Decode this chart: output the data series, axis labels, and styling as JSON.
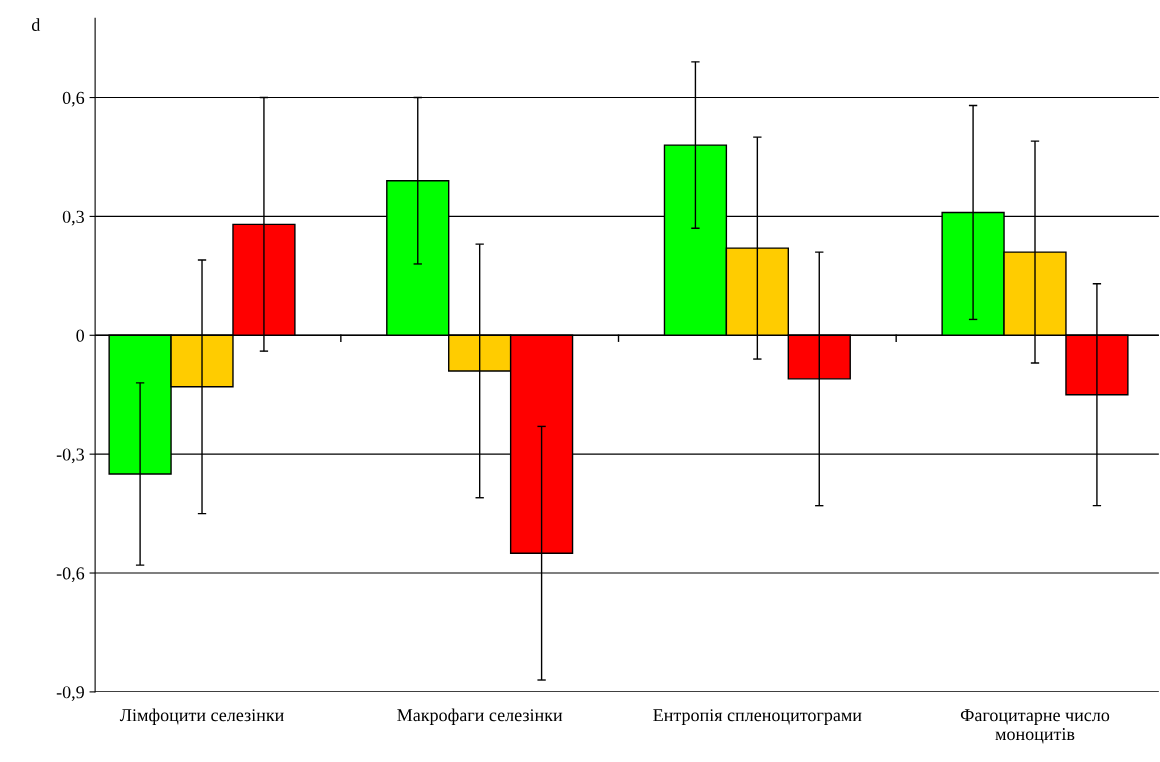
{
  "chart_data": {
    "type": "bar",
    "ylabel": "d",
    "categories": [
      "Лімфоцити селезінки",
      "Макрофаги селезінки",
      "Ентропія спленоцитограми",
      "Фагоцитарне число\nмоноцитів"
    ],
    "series": [
      {
        "color": "#00ff00",
        "values": [
          -0.35,
          0.39,
          0.48,
          0.31
        ],
        "errors": [
          0.23,
          0.21,
          0.21,
          0.27
        ]
      },
      {
        "color": "#ffcc00",
        "values": [
          -0.13,
          -0.09,
          0.22,
          0.21
        ],
        "errors": [
          0.32,
          0.32,
          0.28,
          0.28
        ]
      },
      {
        "color": "#ff0000",
        "values": [
          0.28,
          -0.55,
          -0.11,
          -0.15
        ],
        "errors": [
          0.32,
          0.32,
          0.32,
          0.28
        ]
      }
    ],
    "ylim": [
      -0.9,
      0.8
    ],
    "yticks": [
      {
        "value": -0.9,
        "label": "-0,9"
      },
      {
        "value": -0.6,
        "label": "-0,6"
      },
      {
        "value": -0.3,
        "label": "-0,3"
      },
      {
        "value": 0,
        "label": "0"
      },
      {
        "value": 0.3,
        "label": "0,3"
      },
      {
        "value": 0.6,
        "label": "0,6"
      }
    ],
    "grid": "y",
    "legend": false
  }
}
